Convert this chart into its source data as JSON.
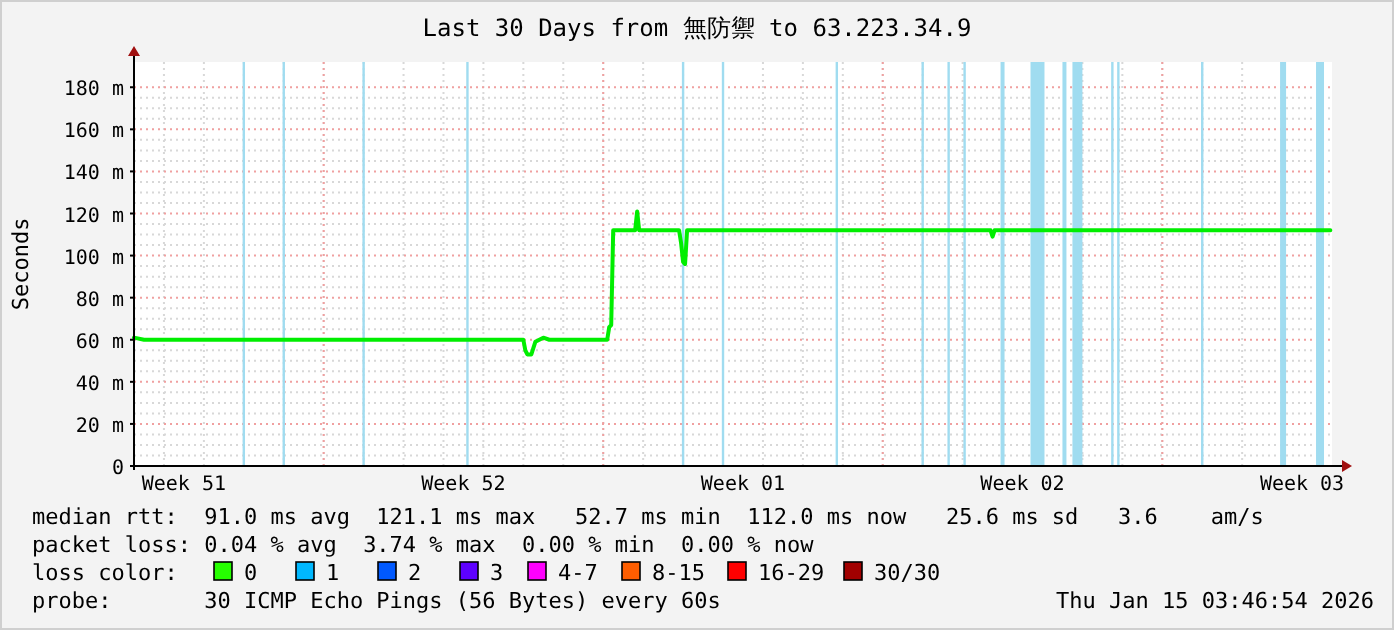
{
  "chart_data": {
    "type": "line",
    "title": "Last 30 Days from 無防禦 to 63.223.34.9",
    "ylabel": "Seconds",
    "x": [
      "2025-12-16T06:00",
      "2025-12-16T12:00",
      "2025-12-26T00:00",
      "2025-12-26T01:12",
      "2025-12-26T02:24",
      "2025-12-26T04:48",
      "2025-12-26T06:00",
      "2025-12-26T07:12",
      "2025-12-26T12:00",
      "2025-12-26T15:36",
      "2025-12-28T02:24",
      "2025-12-28T03:36",
      "2025-12-28T04:48",
      "2025-12-28T06:00",
      "2025-12-28T19:12",
      "2025-12-28T20:24",
      "2025-12-28T21:36",
      "2025-12-29T21:36",
      "2025-12-29T22:48",
      "2025-12-30T00:00",
      "2025-12-30T01:12",
      "2025-12-30T02:24",
      "2026-01-06T16:48",
      "2026-01-06T18:00",
      "2026-01-06T19:12",
      "2026-01-15T05:00"
    ],
    "series": [
      {
        "color": "#00ee00",
        "values": [
          61,
          60,
          60,
          55,
          53,
          53,
          56,
          59,
          61,
          60,
          60,
          66,
          67,
          112,
          112,
          121,
          112,
          112,
          106,
          97,
          96,
          112,
          112,
          109,
          112,
          112
        ]
      }
    ],
    "xlim": [
      "2025-12-16T06:00",
      "2026-01-15T06:00"
    ],
    "xticks": [
      {
        "value": "2025-12-17T12:00",
        "label": "Week 51"
      },
      {
        "value": "2025-12-24T12:00",
        "label": "Week 52"
      },
      {
        "value": "2025-12-31T12:00",
        "label": "Week 01"
      },
      {
        "value": "2026-01-07T12:00",
        "label": "Week 02"
      },
      {
        "value": "2026-01-14T12:00",
        "label": "Week 03"
      }
    ],
    "ylim": [
      0,
      192
    ],
    "yticks": [
      0,
      {
        "value": 20,
        "label": "20 m"
      },
      {
        "value": 40,
        "label": "40 m"
      },
      {
        "value": 60,
        "label": "60 m"
      },
      {
        "value": 80,
        "label": "80 m"
      },
      {
        "value": 100,
        "label": "100 m"
      },
      {
        "value": 120,
        "label": "120 m"
      },
      {
        "value": 140,
        "label": "140 m"
      },
      {
        "value": 160,
        "label": "160 m"
      },
      {
        "value": 180,
        "label": "180 m"
      }
    ],
    "grid": true,
    "marker": "none",
    "line_style": "solid",
    "ref_lines": [
      {
        "axis": "x",
        "value": "2025-12-19T00:00",
        "color": "#a0dcf0"
      },
      {
        "axis": "x",
        "value": "2025-12-20T00:00",
        "color": "#a0dcf0"
      },
      {
        "axis": "x",
        "value": "2025-12-22T00:00",
        "color": "#a0dcf0"
      },
      {
        "axis": "x",
        "value": "2025-12-24T14:24",
        "color": "#a0dcf0"
      },
      {
        "axis": "x",
        "value": "2025-12-30T00:00",
        "color": "#a0dcf0"
      },
      {
        "axis": "x",
        "value": "2025-12-31T00:00",
        "color": "#a0dcf0"
      },
      {
        "axis": "x",
        "value": "2026-01-02T20:24",
        "color": "#a0dcf0"
      },
      {
        "axis": "x",
        "value": "2026-01-05T00:00",
        "color": "#a0dcf0"
      },
      {
        "axis": "x",
        "value": "2026-01-05T15:36",
        "color": "#a0dcf0"
      },
      {
        "axis": "x",
        "value": "2026-01-06T01:12",
        "color": "#a0dcf0"
      },
      {
        "axis": "x",
        "value": "2026-01-09T18:00",
        "color": "#a0dcf0"
      },
      {
        "axis": "x",
        "value": "2026-01-09T21:36",
        "color": "#a0dcf0"
      },
      {
        "axis": "x",
        "value": "2026-01-12T00:00",
        "color": "#a0dcf0"
      }
    ],
    "bands": [
      {
        "axis": "x",
        "from": "2026-01-06T22:48",
        "to": "2026-01-07T01:12",
        "color": "#a0dcf0"
      },
      {
        "axis": "x",
        "from": "2026-01-07T16:48",
        "to": "2026-01-08T01:12",
        "color": "#a0dcf0"
      },
      {
        "axis": "x",
        "from": "2026-01-08T12:00",
        "to": "2026-01-08T14:24",
        "color": "#a0dcf0"
      },
      {
        "axis": "x",
        "from": "2026-01-08T18:00",
        "to": "2026-01-09T00:00",
        "color": "#a0dcf0"
      },
      {
        "axis": "x",
        "from": "2026-01-13T22:48",
        "to": "2026-01-14T02:24",
        "color": "#a0dcf0"
      },
      {
        "axis": "x",
        "from": "2026-01-14T20:24",
        "to": "2026-01-15T01:12",
        "color": "#a0dcf0"
      }
    ],
    "annotations": [
      "median rtt:  91.0 ms avg  121.1 ms max   52.7 ms min  112.0 ms now   25.6 ms sd   3.6    am/s",
      "packet loss: 0.04 % avg  3.74 % max  0.00 % min  0.00 % now",
      "loss color:",
      "0",
      "1",
      "2",
      "3",
      "4-7",
      "8-15",
      "16-29",
      "30/30",
      "probe:       30 ICMP Echo Pings (56 Bytes) every 60s",
      "Thu Jan 15 03:46:54 2026"
    ]
  }
}
